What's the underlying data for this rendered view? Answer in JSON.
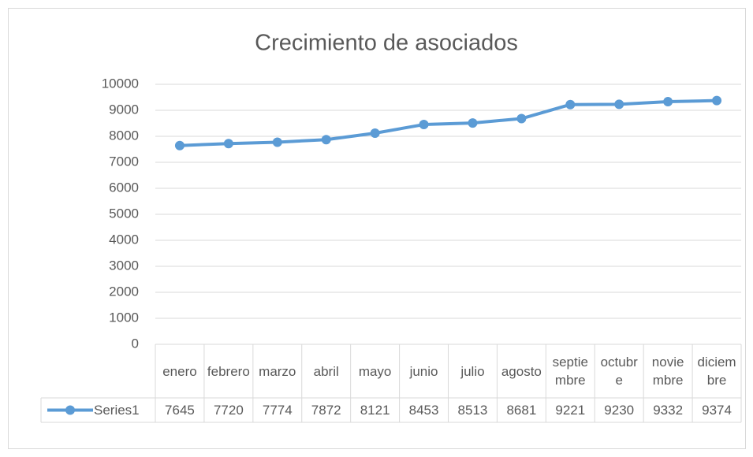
{
  "chart_data": {
    "type": "line",
    "title": "Crecimiento de asociados",
    "categories": [
      "enero",
      "febrero",
      "marzo",
      "abril",
      "mayo",
      "junio",
      "julio",
      "agosto",
      "septiembre",
      "octubre",
      "noviembre",
      "diciembre"
    ],
    "series": [
      {
        "name": "Series1",
        "color": "#5b9bd5",
        "values": [
          7645,
          7720,
          7774,
          7872,
          8121,
          8453,
          8513,
          8681,
          9221,
          9230,
          9332,
          9374
        ]
      }
    ],
    "ylim": [
      0,
      10000
    ],
    "yticks": [
      0,
      1000,
      2000,
      3000,
      4000,
      5000,
      6000,
      7000,
      8000,
      9000,
      10000
    ],
    "grid": true,
    "data_table": true
  }
}
